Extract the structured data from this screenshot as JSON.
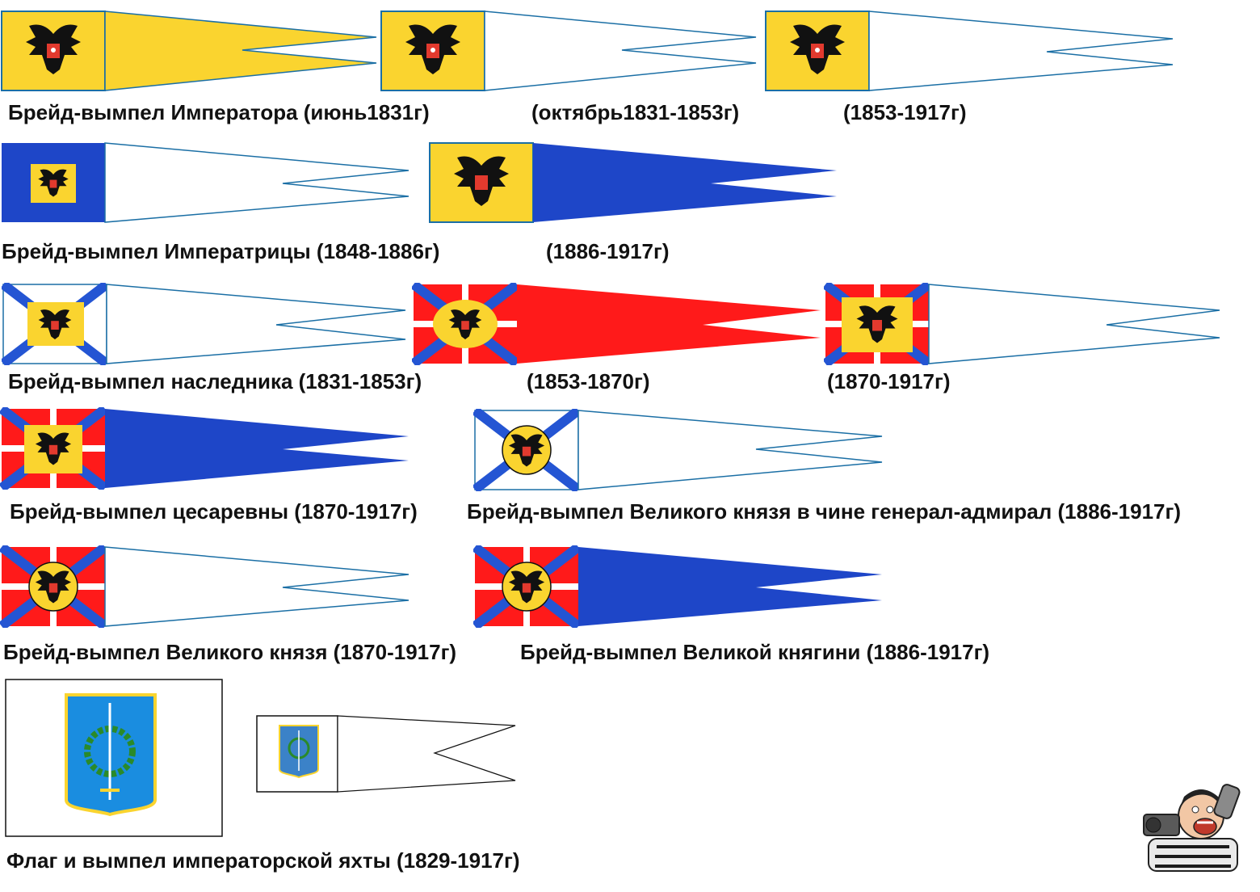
{
  "colors": {
    "gold": "#fad42f",
    "white": "#ffffff",
    "blue": "#1e46c8",
    "red": "#ff1a1a",
    "st_andrew_blue": "#2455d3",
    "outline": "#1b6fa5",
    "eagle_black": "#111111",
    "shield_red": "#e23a2e",
    "yacht_blue": "#1a8de0"
  },
  "captions": {
    "emperor_1831": "Брейд-вымпел Императора (июнь1831г)",
    "emperor_1831_1853": "(октябрь1831-1853г)",
    "emperor_1853_1917": "(1853-1917г)",
    "empress_1848": "Брейд-вымпел Императрицы  (1848-1886г)",
    "empress_1886": "(1886-1917г)",
    "heir_1831": "Брейд-вымпел наследника (1831-1853г)",
    "heir_1853": "(1853-1870г)",
    "heir_1870": "(1870-1917г)",
    "tsesarevna": "Брейд-вымпел цесаревны (1870-1917г)",
    "gd_admiral": "Брейд-вымпел Великого князя в чине генерал-адмирал (1886-1917г)",
    "grand_duke": "Брейд-вымпел Великого князя (1870-1917г)",
    "grand_duchess": "Брейд-вымпел Великой княгини (1886-1917г)",
    "yacht": "Флаг  и вымпел императорской яхты (1829-1917г)"
  }
}
